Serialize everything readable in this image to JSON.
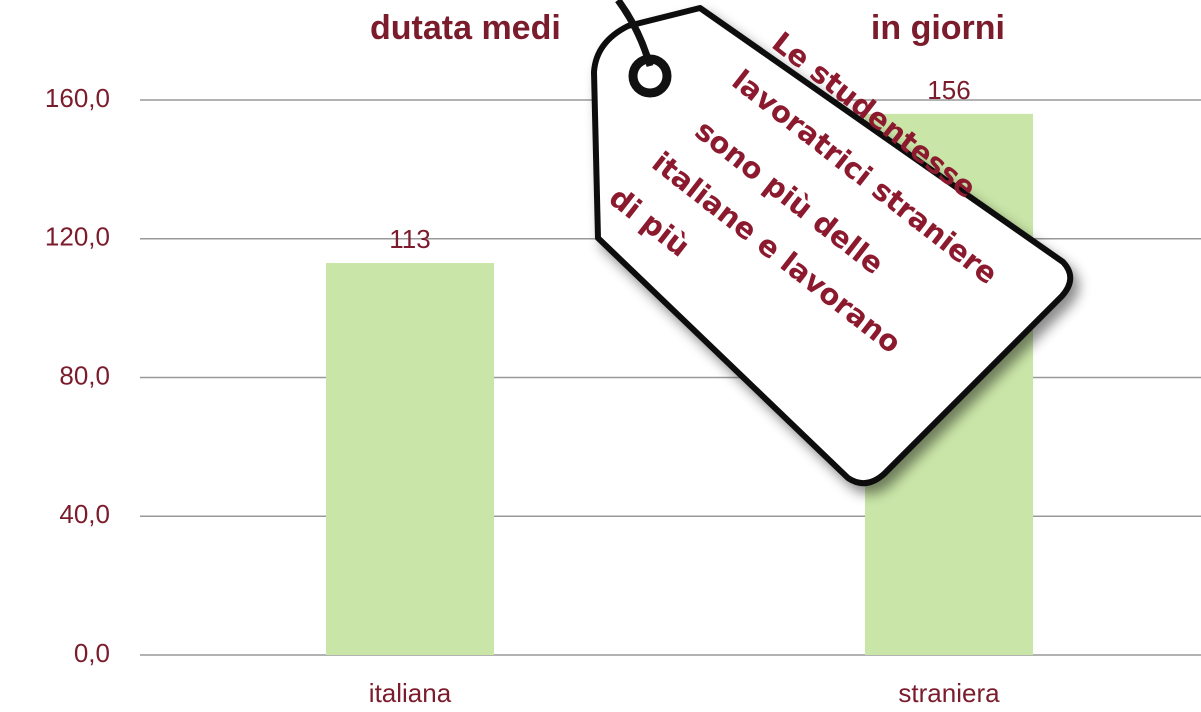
{
  "chart_data": {
    "type": "bar",
    "title": [
      "dutata medi",
      "in giorni"
    ],
    "categories": [
      "italiana",
      "straniera"
    ],
    "values": [
      113,
      156
    ],
    "color": "#c9e5a7",
    "ylim": [
      0,
      160
    ],
    "yticks": [
      {
        "value": 0,
        "label": "0,0"
      },
      {
        "value": 40,
        "label": "40,0"
      },
      {
        "value": 80,
        "label": "80,0"
      },
      {
        "value": 120,
        "label": "120,0"
      },
      {
        "value": 160,
        "label": "160,0"
      }
    ],
    "grid": true,
    "annotation": [
      "Le studentesse",
      "lavoratrici straniere",
      "sono più delle",
      "italiane e  lavorano",
      "di più"
    ]
  }
}
